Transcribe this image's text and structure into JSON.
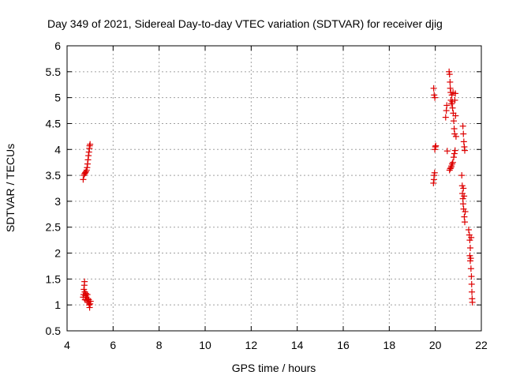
{
  "chart_data": {
    "type": "scatter",
    "title": "Day 349 of 2021, Sidereal Day-to-day VTEC variation (SDTVAR) for receiver djig",
    "xlabel": "GPS time / hours",
    "ylabel": "SDTVAR / TECUs",
    "xlim": [
      4,
      22
    ],
    "ylim": [
      0.5,
      6
    ],
    "xticks": [
      "4",
      "6",
      "8",
      "10",
      "12",
      "14",
      "16",
      "18",
      "20",
      "22"
    ],
    "yticks": [
      "0.5",
      "1",
      "1.5",
      "2",
      "2.5",
      "3",
      "3.5",
      "4",
      "4.5",
      "5",
      "5.5",
      "6"
    ],
    "grid": true,
    "color": "#dd0000",
    "marker": "plus",
    "series": [
      {
        "points": [
          [
            4.7,
            3.42
          ],
          [
            4.73,
            3.5
          ],
          [
            4.76,
            3.53
          ],
          [
            4.79,
            3.55
          ],
          [
            4.82,
            3.57
          ],
          [
            4.85,
            3.6
          ],
          [
            4.87,
            3.65
          ],
          [
            4.89,
            3.72
          ],
          [
            4.91,
            3.8
          ],
          [
            4.93,
            3.88
          ],
          [
            4.95,
            3.95
          ],
          [
            4.97,
            4.02
          ],
          [
            4.98,
            4.07
          ],
          [
            5.0,
            4.1
          ],
          [
            4.7,
            1.15
          ],
          [
            4.72,
            1.2
          ],
          [
            4.73,
            1.3
          ],
          [
            4.75,
            1.38
          ],
          [
            4.76,
            1.45
          ],
          [
            4.77,
            1.25
          ],
          [
            4.78,
            1.1
          ],
          [
            4.8,
            1.18
          ],
          [
            4.82,
            1.22
          ],
          [
            4.84,
            1.15
          ],
          [
            4.86,
            1.08
          ],
          [
            4.88,
            1.2
          ],
          [
            4.9,
            1.12
          ],
          [
            4.92,
            1.05
          ],
          [
            4.94,
            1.1
          ],
          [
            4.96,
            1.0
          ],
          [
            4.98,
            0.95
          ],
          [
            5.0,
            1.02
          ],
          [
            5.02,
            1.07
          ],
          [
            19.92,
            3.35
          ],
          [
            19.94,
            3.42
          ],
          [
            19.95,
            3.5
          ],
          [
            19.97,
            3.55
          ],
          [
            19.98,
            4.0
          ],
          [
            20.0,
            4.05
          ],
          [
            20.02,
            4.07
          ],
          [
            19.93,
            5.18
          ],
          [
            19.95,
            5.05
          ],
          [
            19.98,
            5.0
          ],
          [
            20.45,
            4.62
          ],
          [
            20.48,
            4.75
          ],
          [
            20.5,
            4.85
          ],
          [
            20.52,
            3.97
          ],
          [
            20.6,
            5.5
          ],
          [
            20.62,
            5.45
          ],
          [
            20.64,
            5.3
          ],
          [
            20.65,
            5.18
          ],
          [
            20.67,
            5.1
          ],
          [
            20.68,
            4.95
          ],
          [
            20.7,
            4.88
          ],
          [
            20.72,
            5.05
          ],
          [
            20.74,
            4.92
          ],
          [
            20.75,
            4.8
          ],
          [
            20.77,
            5.1
          ],
          [
            20.78,
            4.7
          ],
          [
            20.8,
            4.55
          ],
          [
            20.82,
            4.4
          ],
          [
            20.84,
            4.3
          ],
          [
            20.85,
            4.95
          ],
          [
            20.87,
            5.08
          ],
          [
            20.88,
            4.65
          ],
          [
            20.9,
            4.25
          ],
          [
            20.62,
            3.6
          ],
          [
            20.65,
            3.63
          ],
          [
            20.68,
            3.65
          ],
          [
            20.7,
            3.68
          ],
          [
            20.73,
            3.72
          ],
          [
            20.76,
            3.75
          ],
          [
            20.8,
            3.85
          ],
          [
            20.83,
            3.92
          ],
          [
            20.86,
            3.98
          ],
          [
            21.2,
            4.45
          ],
          [
            21.22,
            4.3
          ],
          [
            21.24,
            4.15
          ],
          [
            21.26,
            4.05
          ],
          [
            21.28,
            3.98
          ],
          [
            21.15,
            3.5
          ],
          [
            21.17,
            3.3
          ],
          [
            21.18,
            3.15
          ],
          [
            21.2,
            3.05
          ],
          [
            21.21,
            2.95
          ],
          [
            21.22,
            3.25
          ],
          [
            21.23,
            2.85
          ],
          [
            21.25,
            3.1
          ],
          [
            21.26,
            2.7
          ],
          [
            21.28,
            2.6
          ],
          [
            21.3,
            2.8
          ],
          [
            21.45,
            2.45
          ],
          [
            21.48,
            2.35
          ],
          [
            21.5,
            2.25
          ],
          [
            21.52,
            2.1
          ],
          [
            21.5,
            1.95
          ],
          [
            21.52,
            1.85
          ],
          [
            21.54,
            1.9
          ],
          [
            21.56,
            2.3
          ],
          [
            21.55,
            1.7
          ],
          [
            21.57,
            1.55
          ],
          [
            21.58,
            1.4
          ],
          [
            21.59,
            1.25
          ],
          [
            21.6,
            1.12
          ],
          [
            21.61,
            1.05
          ]
        ]
      }
    ]
  }
}
